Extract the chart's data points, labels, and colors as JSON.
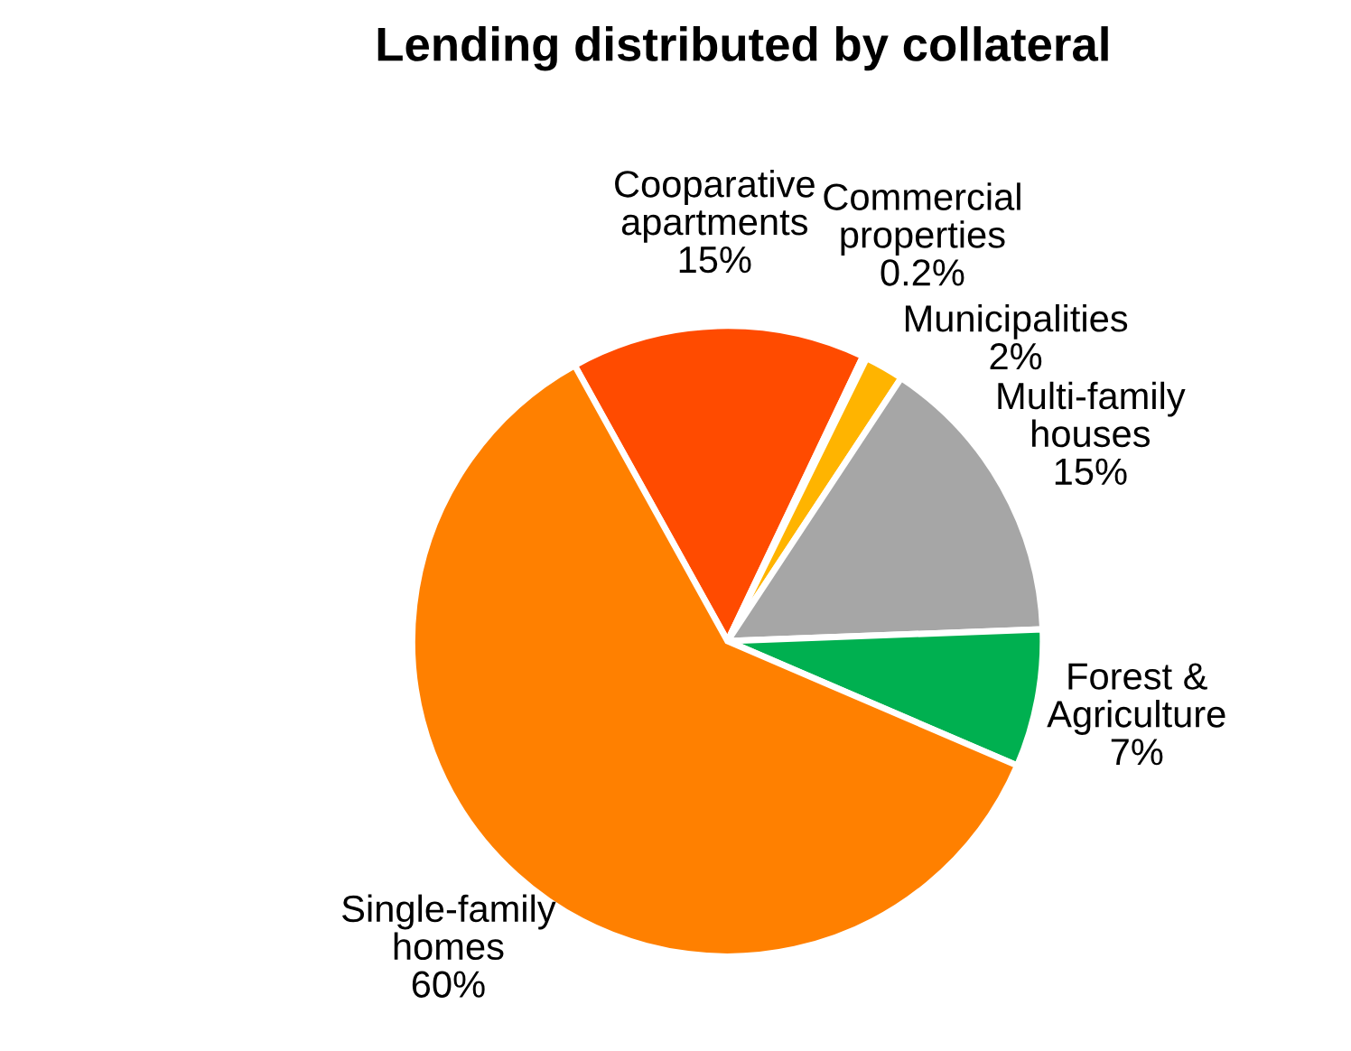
{
  "chart_data": {
    "type": "pie",
    "title": "Lending distributed by collateral",
    "categories": [
      "Cooparative apartments",
      "Commercial properties",
      "Municipalities",
      "Multi-family houses",
      "Forest & Agriculture",
      "Single-family homes"
    ],
    "values": [
      15,
      0.2,
      2,
      15,
      7,
      60
    ],
    "value_labels": [
      "15%",
      "0.2%",
      "2%",
      "15%",
      "7%",
      "60%"
    ],
    "colors": [
      "#ff4b00",
      "#c00000",
      "#ffb400",
      "#a6a6a6",
      "#00b050",
      "#ff8000"
    ]
  }
}
